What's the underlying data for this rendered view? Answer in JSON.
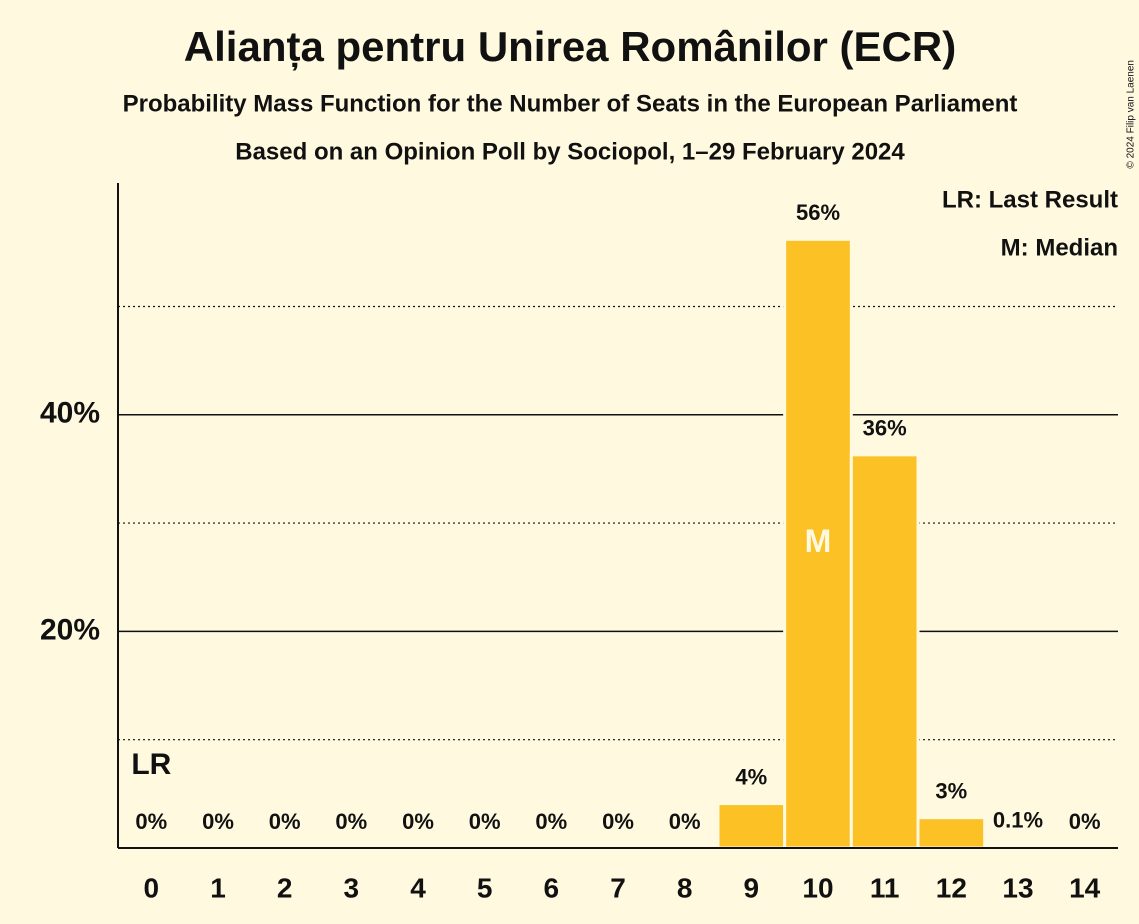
{
  "chart_data": {
    "type": "bar",
    "title": "Alianța pentru Unirea Românilor (ECR)",
    "subtitle": "Probability Mass Function for the Number of Seats in the European Parliament",
    "subtitle2": "Based on an Opinion Poll by Sociopol, 1–29 February 2024",
    "copyright": "© 2024 Filip van Laenen",
    "categories": [
      "0",
      "1",
      "2",
      "3",
      "4",
      "5",
      "6",
      "7",
      "8",
      "9",
      "10",
      "11",
      "12",
      "13",
      "14"
    ],
    "values": [
      0,
      0,
      0,
      0,
      0,
      0,
      0,
      0,
      0,
      4.1,
      56.2,
      36.3,
      2.8,
      0.1,
      0
    ],
    "value_labels": [
      "0%",
      "0%",
      "0%",
      "0%",
      "0%",
      "0%",
      "0%",
      "0%",
      "0%",
      "4%",
      "56%",
      "36%",
      "3%",
      "0.1%",
      "0%"
    ],
    "color": "#fbc125",
    "ylim": [
      0,
      61.4
    ],
    "yticks": [
      {
        "value": 20,
        "label": "20%"
      },
      {
        "value": 40,
        "label": "40%"
      }
    ],
    "minor_yticks": [
      10,
      30,
      50
    ],
    "grid": true,
    "markers": {
      "last_result": {
        "label": "LR",
        "category": "0"
      },
      "median": {
        "label": "M",
        "category": "10"
      }
    },
    "legend": [
      "LR: Last Result",
      "M: Median"
    ],
    "legend_position": "top-right"
  }
}
